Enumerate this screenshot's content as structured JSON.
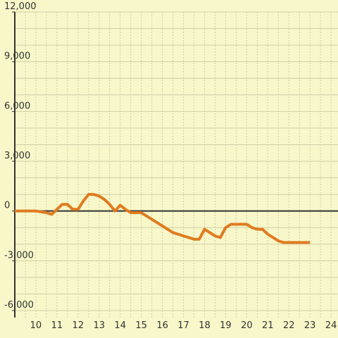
{
  "chart_data": {
    "type": "line",
    "x": [
      9,
      10,
      10.5,
      10.75,
      11,
      11.25,
      11.5,
      11.75,
      12,
      12.25,
      12.5,
      12.75,
      13,
      13.25,
      13.5,
      13.75,
      14,
      14.25,
      14.5,
      14.75,
      15,
      15.25,
      15.5,
      15.75,
      16,
      16.25,
      16.5,
      16.75,
      17,
      17.25,
      17.5,
      17.75,
      18,
      18.25,
      18.5,
      18.75,
      19,
      19.25,
      19.5,
      19.75,
      20,
      20.25,
      20.5,
      20.75,
      21,
      21.25,
      21.5,
      21.75,
      22,
      22.5,
      23
    ],
    "series": [
      {
        "color": "#e07b20",
        "values": [
          0,
          0,
          -100,
          -200,
          100,
          400,
          400,
          100,
          100,
          600,
          1000,
          1000,
          900,
          700,
          400,
          0,
          350,
          100,
          -100,
          -100,
          -100,
          -300,
          -500,
          -700,
          -900,
          -1100,
          -1300,
          -1400,
          -1500,
          -1600,
          -1700,
          -1700,
          -1100,
          -1300,
          -1500,
          -1600,
          -1000,
          -800,
          -800,
          -800,
          -800,
          -1000,
          -1100,
          -1100,
          -1400,
          -1600,
          -1800,
          -1900,
          -1900,
          -1900,
          -1900
        ]
      }
    ],
    "xlim": [
      9,
      24.33
    ],
    "xticks": [
      10,
      11,
      12,
      13,
      14,
      15,
      16,
      17,
      18,
      19,
      20,
      21,
      22,
      23,
      24
    ],
    "xgrid": [
      9.5,
      10,
      10.5,
      11,
      11.5,
      12,
      12.5,
      13,
      13.5,
      14,
      14.5,
      15,
      15.5,
      16,
      16.5,
      17,
      17.5,
      18,
      18.5,
      19,
      19.5,
      20,
      20.5,
      21,
      21.5,
      22,
      22.5,
      23,
      23.5,
      24
    ],
    "ylim": [
      -6000,
      12000
    ],
    "yticks": [
      {
        "value": -6000,
        "label": "-6,000"
      },
      {
        "value": -3000,
        "label": "-3,000"
      },
      0,
      {
        "value": 3000,
        "label": "3,000"
      },
      {
        "value": 6000,
        "label": "6,000"
      },
      {
        "value": 9000,
        "label": "9,000"
      },
      {
        "value": 12000,
        "label": "12,000"
      }
    ],
    "ygrid": [
      -6000,
      -5000,
      -4000,
      -3000,
      -2000,
      -1000,
      0,
      1000,
      2000,
      3000,
      4000,
      5000,
      6000,
      7000,
      8000,
      9000,
      10000,
      11000,
      12000
    ],
    "grid": true
  }
}
